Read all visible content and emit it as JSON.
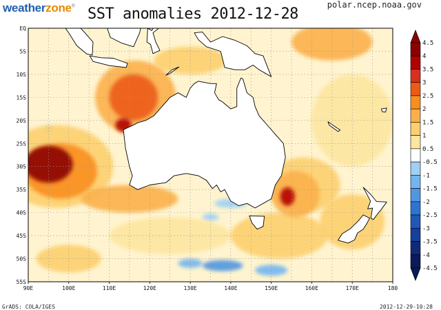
{
  "logo": {
    "part1": "weather",
    "part2": "zone",
    "mark": "®"
  },
  "title": "SST anomalies 2012-12-28",
  "source": "polar.ncep.noaa.gov",
  "footer": {
    "credit": "GrADS: COLA/IGES",
    "timestamp": "2012-12-29-10:28"
  },
  "map": {
    "lon_range": [
      90,
      180
    ],
    "lat_range": [
      -55,
      0
    ],
    "lon_labels": [
      "90E",
      "100E",
      "110E",
      "120E",
      "130E",
      "140E",
      "150E",
      "160E",
      "170E",
      "180"
    ],
    "lat_labels": [
      "EQ",
      "5S",
      "10S",
      "15S",
      "20S",
      "25S",
      "30S",
      "35S",
      "40S",
      "45S",
      "50S",
      "55S"
    ]
  },
  "colorbar": {
    "labels": [
      "4.5",
      "4",
      "3.5",
      "3",
      "2.5",
      "2",
      "1.5",
      "1",
      "0.5",
      "-0.5",
      "-1",
      "-1.5",
      "-2",
      "-2.5",
      "-3",
      "-3.5",
      "-4",
      "-4.5"
    ],
    "colors": [
      "#8b0000",
      "#b30000",
      "#d7301f",
      "#ec5b16",
      "#f98e20",
      "#fbb04a",
      "#fdcf6f",
      "#fde6a0",
      "#ffffff",
      "#9fd0f5",
      "#73b6ee",
      "#5096e0",
      "#2e74d0",
      "#1f58b8",
      "#173f9c",
      "#112a7a",
      "#0a1a5a"
    ]
  },
  "anomaly_patches": [
    {
      "lon": 95,
      "lat": -29.5,
      "rx": 6,
      "ry": 4,
      "value": 4
    },
    {
      "lon": 98,
      "lat": -31,
      "rx": 9,
      "ry": 6,
      "value": 2
    },
    {
      "lon": 97,
      "lat": -30,
      "rx": 14,
      "ry": 9,
      "value": 1
    },
    {
      "lon": 116,
      "lat": -15,
      "rx": 6,
      "ry": 5,
      "value": 2.5
    },
    {
      "lon": 116.5,
      "lat": -15,
      "rx": 10,
      "ry": 8,
      "value": 1.5
    },
    {
      "lon": 113.5,
      "lat": -21,
      "rx": 2,
      "ry": 1.5,
      "value": 3.5
    },
    {
      "lon": 154,
      "lat": -36.5,
      "rx": 1.8,
      "ry": 2,
      "value": 3.5
    },
    {
      "lon": 156,
      "lat": -36,
      "rx": 6,
      "ry": 5,
      "value": 1.5
    },
    {
      "lon": 158,
      "lat": -34,
      "rx": 9,
      "ry": 6,
      "value": 1
    },
    {
      "lon": 165,
      "lat": -3,
      "rx": 10,
      "ry": 4,
      "value": 1.5
    },
    {
      "lon": 130,
      "lat": -7,
      "rx": 9,
      "ry": 3,
      "value": 1
    },
    {
      "lon": 170,
      "lat": -20,
      "rx": 10,
      "ry": 10,
      "value": 0.8
    },
    {
      "lon": 115,
      "lat": -37,
      "rx": 12,
      "ry": 3,
      "value": 1.5
    },
    {
      "lon": 100,
      "lat": -50,
      "rx": 8,
      "ry": 3,
      "value": 1
    },
    {
      "lon": 152,
      "lat": -45,
      "rx": 12,
      "ry": 5,
      "value": 1
    },
    {
      "lon": 125,
      "lat": -45,
      "rx": 15,
      "ry": 4,
      "value": 0.8
    },
    {
      "lon": 170,
      "lat": -42,
      "rx": 8,
      "ry": 6,
      "value": 1
    },
    {
      "lon": 130,
      "lat": -51,
      "rx": 3,
      "ry": 1,
      "value": -1
    },
    {
      "lon": 138,
      "lat": -51.5,
      "rx": 5,
      "ry": 1.2,
      "value": -1.5
    },
    {
      "lon": 150,
      "lat": -52.5,
      "rx": 4,
      "ry": 1.2,
      "value": -1
    },
    {
      "lon": 140,
      "lat": -38,
      "rx": 4,
      "ry": 1,
      "value": -0.6
    },
    {
      "lon": 95,
      "lat": -22,
      "rx": 1,
      "ry": 0.8,
      "value": -0.6
    },
    {
      "lon": 135,
      "lat": -41,
      "rx": 2,
      "ry": 0.8,
      "value": -0.6
    }
  ],
  "land": {
    "australia": [
      [
        113.5,
        -22
      ],
      [
        114,
        -26
      ],
      [
        115,
        -30
      ],
      [
        115.7,
        -32
      ],
      [
        115,
        -34
      ],
      [
        117,
        -35
      ],
      [
        120,
        -34
      ],
      [
        124,
        -33.5
      ],
      [
        126,
        -32
      ],
      [
        129,
        -31.5
      ],
      [
        132,
        -32
      ],
      [
        134,
        -33
      ],
      [
        135.5,
        -34.8
      ],
      [
        136.5,
        -34
      ],
      [
        137.5,
        -35.5
      ],
      [
        138.5,
        -35
      ],
      [
        140,
        -37.5
      ],
      [
        142,
        -38.5
      ],
      [
        144,
        -38
      ],
      [
        146,
        -39
      ],
      [
        148,
        -38
      ],
      [
        150,
        -37
      ],
      [
        151,
        -34
      ],
      [
        152.5,
        -32
      ],
      [
        153.5,
        -28
      ],
      [
        153,
        -25
      ],
      [
        151,
        -23
      ],
      [
        149,
        -21
      ],
      [
        147,
        -19
      ],
      [
        146,
        -17
      ],
      [
        145.5,
        -15
      ],
      [
        144,
        -14
      ],
      [
        143,
        -11
      ],
      [
        142.5,
        -10.8
      ],
      [
        141.5,
        -13
      ],
      [
        141.5,
        -17
      ],
      [
        140,
        -17.5
      ],
      [
        138,
        -16
      ],
      [
        137,
        -15.5
      ],
      [
        136,
        -14
      ],
      [
        136.5,
        -12
      ],
      [
        135,
        -12
      ],
      [
        132,
        -11.5
      ],
      [
        131,
        -12
      ],
      [
        130,
        -13
      ],
      [
        129,
        -15
      ],
      [
        127,
        -14
      ],
      [
        125,
        -15
      ],
      [
        123.5,
        -16.5
      ],
      [
        122,
        -18
      ],
      [
        121,
        -19
      ],
      [
        119,
        -20
      ],
      [
        117,
        -20.5
      ],
      [
        116,
        -21
      ],
      [
        114,
        -21.8
      ]
    ],
    "tasmania": [
      [
        144.6,
        -40.7
      ],
      [
        148.3,
        -40.8
      ],
      [
        148,
        -43
      ],
      [
        146.5,
        -43.6
      ],
      [
        145.2,
        -42.2
      ]
    ],
    "new_guinea": [
      [
        131,
        -1
      ],
      [
        133,
        -0.8
      ],
      [
        135,
        -3
      ],
      [
        138,
        -1.8
      ],
      [
        141,
        -2.6
      ],
      [
        144,
        -3.8
      ],
      [
        146,
        -5.5
      ],
      [
        148,
        -6
      ],
      [
        150,
        -10.5
      ],
      [
        147,
        -9
      ],
      [
        145.5,
        -8
      ],
      [
        143.5,
        -9
      ],
      [
        141,
        -9
      ],
      [
        138.5,
        -8.5
      ],
      [
        137.5,
        -5
      ],
      [
        134,
        -4
      ],
      [
        132,
        -2.5
      ]
    ],
    "nz_north": [
      [
        172.7,
        -34.5
      ],
      [
        174.5,
        -36
      ],
      [
        176,
        -37.6
      ],
      [
        178.5,
        -37.7
      ],
      [
        177,
        -39.5
      ],
      [
        176.5,
        -40
      ],
      [
        175.2,
        -41.5
      ],
      [
        174.6,
        -41.2
      ],
      [
        175,
        -39
      ],
      [
        173.8,
        -39.2
      ],
      [
        174.5,
        -37.5
      ]
    ],
    "nz_south": [
      [
        172.7,
        -40.5
      ],
      [
        174.3,
        -41.2
      ],
      [
        173.5,
        -42.5
      ],
      [
        172.7,
        -43.6
      ],
      [
        171.3,
        -44.4
      ],
      [
        170.6,
        -45.9
      ],
      [
        169,
        -46.6
      ],
      [
        166.5,
        -46
      ],
      [
        167.5,
        -44.6
      ],
      [
        169.5,
        -43.5
      ],
      [
        171.5,
        -41.8
      ]
    ],
    "java": [
      [
        105.2,
        -6
      ],
      [
        108,
        -6.4
      ],
      [
        111,
        -6.5
      ],
      [
        114.5,
        -7.6
      ],
      [
        114.2,
        -8.5
      ],
      [
        110,
        -8.1
      ],
      [
        106,
        -7.2
      ]
    ],
    "sumatra": [
      [
        95.3,
        5.6
      ],
      [
        98,
        4
      ],
      [
        101,
        1.8
      ],
      [
        104,
        -1
      ],
      [
        106,
        -3
      ],
      [
        105.8,
        -5.8
      ],
      [
        104.5,
        -5.6
      ],
      [
        102,
        -3.8
      ],
      [
        100,
        -1
      ],
      [
        98,
        1.5
      ],
      [
        96,
        3.7
      ]
    ],
    "borneo": [
      [
        109,
        1.5
      ],
      [
        111,
        1.8
      ],
      [
        114,
        4.5
      ],
      [
        117,
        7
      ],
      [
        119,
        5
      ],
      [
        118,
        1
      ],
      [
        117.5,
        -1
      ],
      [
        116,
        -4
      ],
      [
        113,
        -3.2
      ],
      [
        110.3,
        -2
      ],
      [
        109.5,
        0
      ]
    ],
    "sulawesi": [
      [
        119.5,
        0
      ],
      [
        120.5,
        -0.5
      ],
      [
        121.5,
        1
      ],
      [
        124,
        1.5
      ],
      [
        122.5,
        0.2
      ],
      [
        120.8,
        -1
      ],
      [
        121.5,
        -3
      ],
      [
        122.5,
        -4.8
      ],
      [
        120.8,
        -5.5
      ],
      [
        120.2,
        -3.5
      ],
      [
        119.3,
        -3
      ]
    ],
    "timor": [
      [
        124,
        -10.2
      ],
      [
        125.5,
        -9
      ],
      [
        127.2,
        -8.4
      ],
      [
        125,
        -9.8
      ]
    ],
    "new_caledonia": [
      [
        164,
        -20.3
      ],
      [
        167,
        -22.1
      ],
      [
        166.5,
        -22.4
      ],
      [
        164.3,
        -21
      ]
    ],
    "fiji": [
      [
        177.2,
        -17.5
      ],
      [
        178.5,
        -17.3
      ],
      [
        178.2,
        -18.2
      ],
      [
        177.4,
        -18.1
      ]
    ]
  }
}
